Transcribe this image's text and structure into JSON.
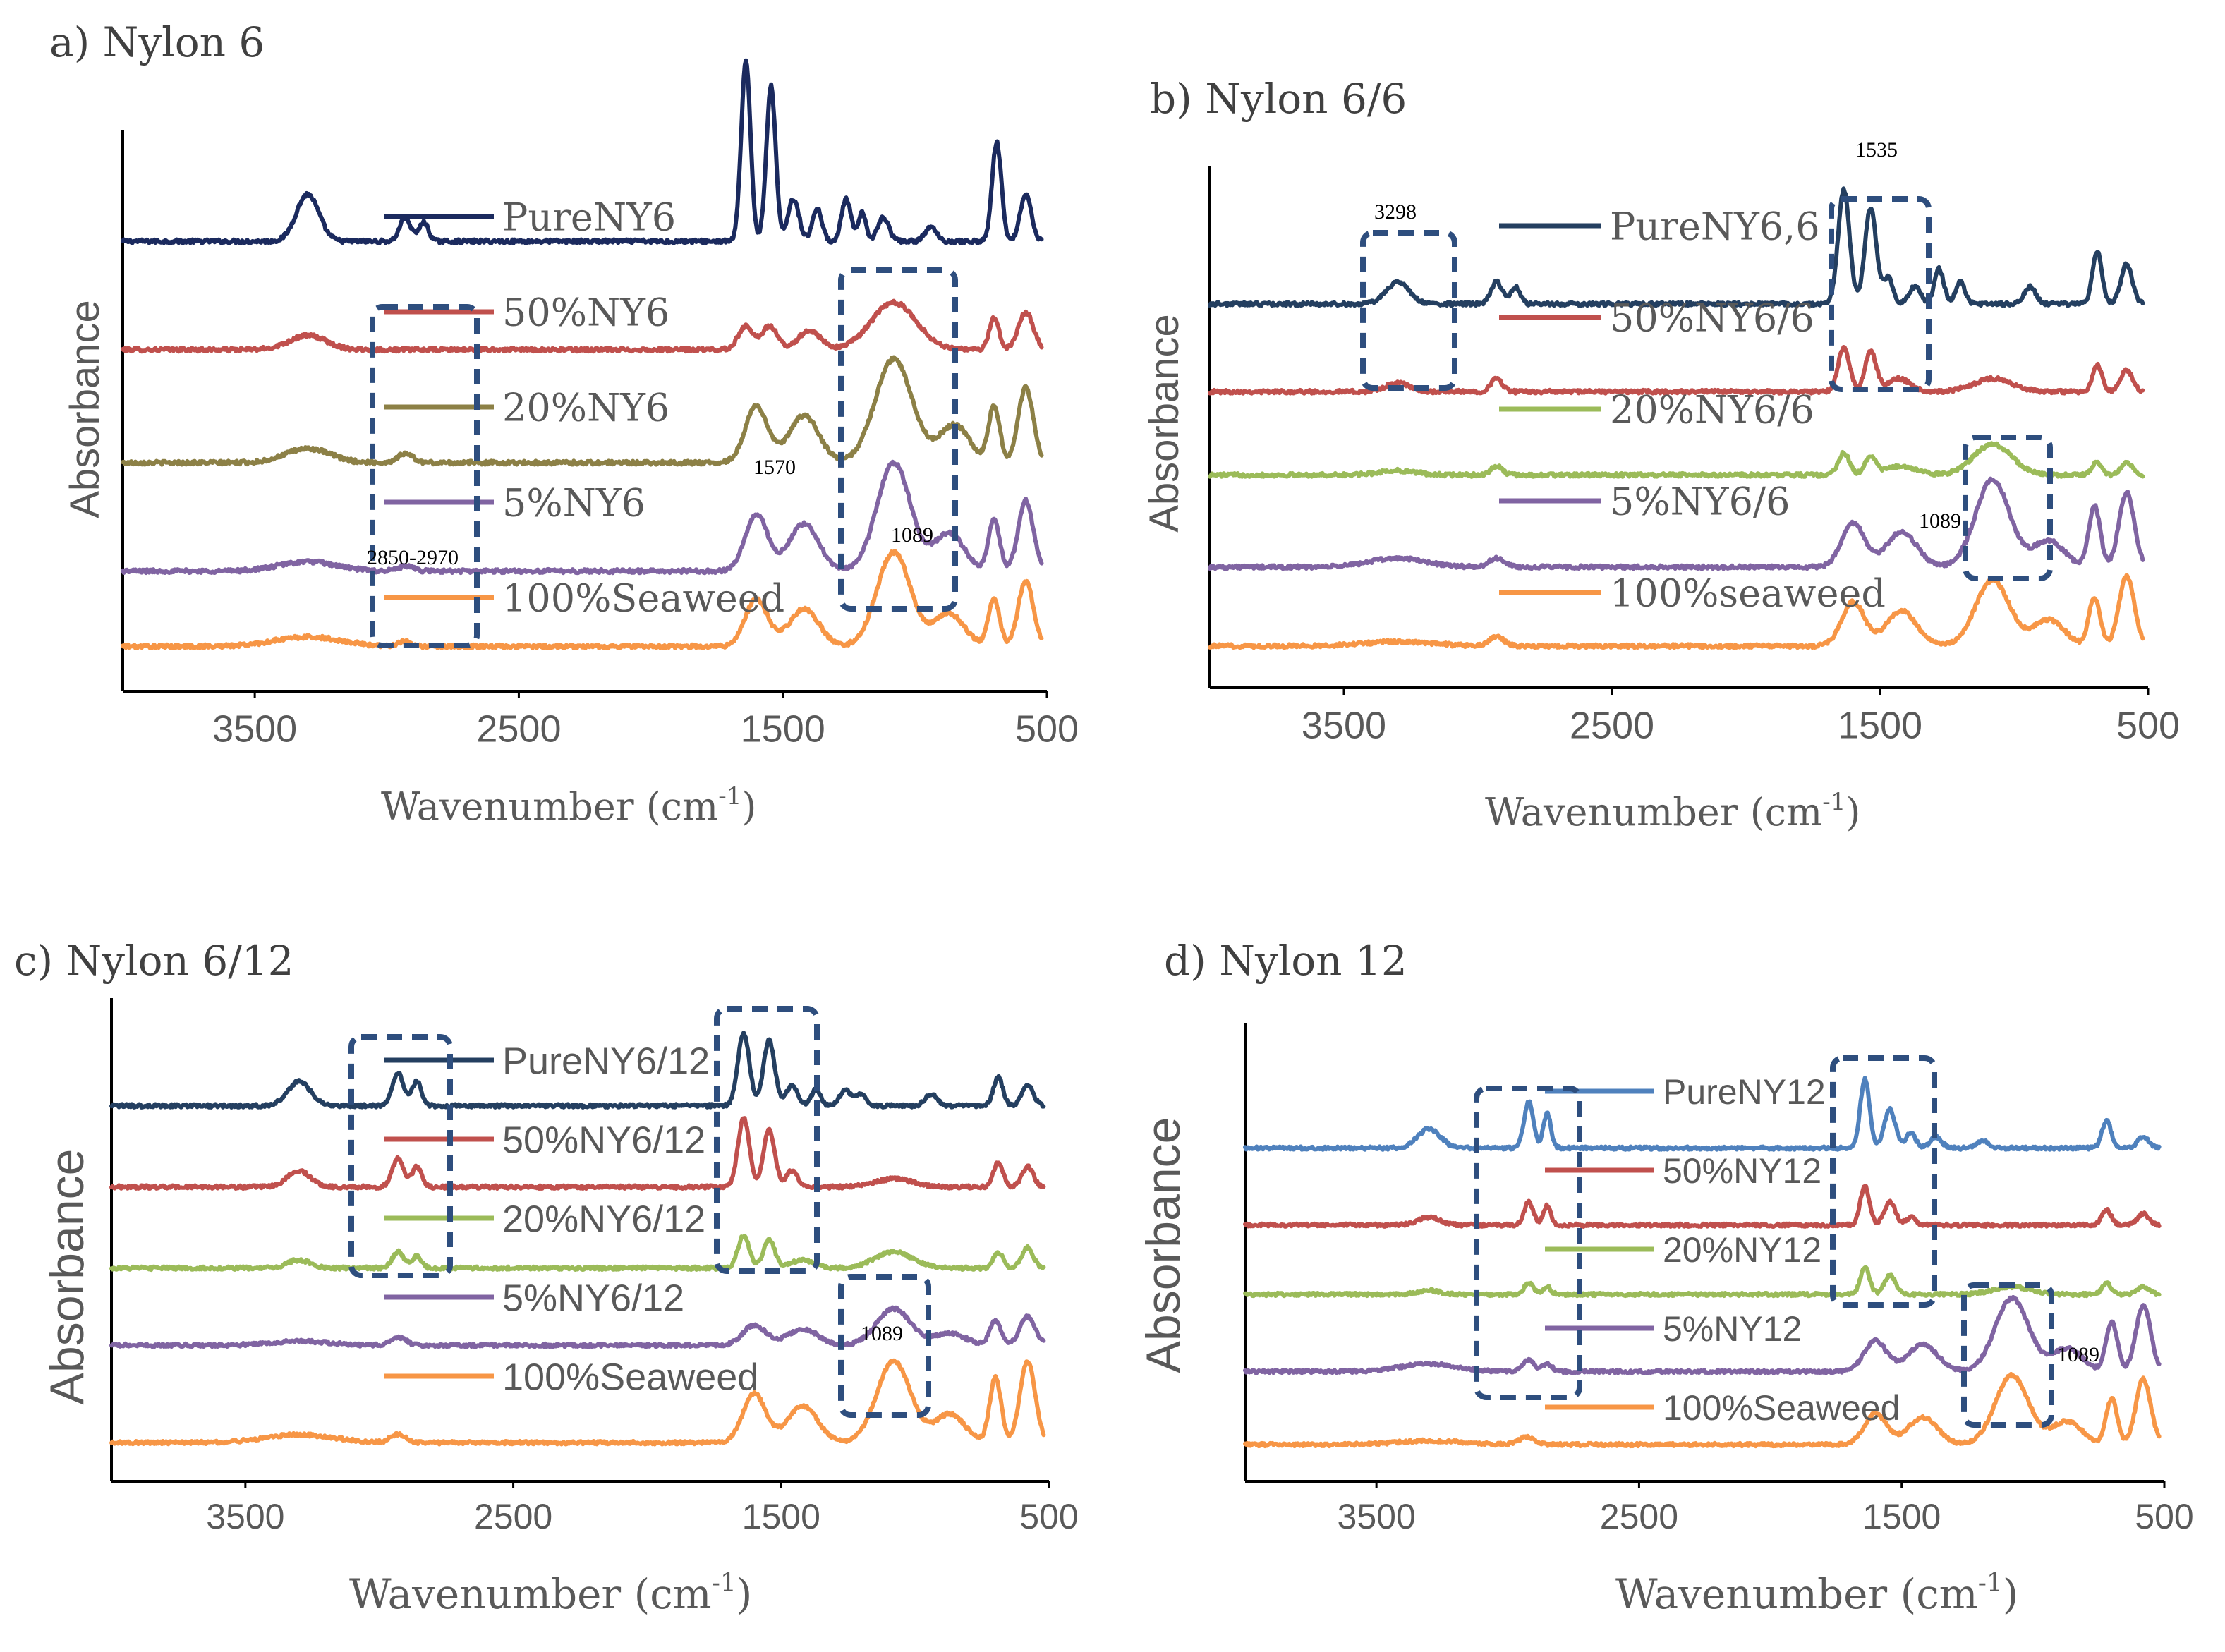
{
  "chart_data": [
    {
      "type": "line",
      "title": "a) Nylon 6",
      "xlabel": "Wavenumber (cm",
      "xlabel_sup": "-1",
      "xlabel_end": ")",
      "ylabel": "Absorbance",
      "x_reversed": true,
      "xlim": [
        4000,
        500
      ],
      "xticks": [
        "3500",
        "2500",
        "1500",
        "500"
      ],
      "series": [
        {
          "name": "PureNY6",
          "color": "#1b2a5e",
          "offset": 0.86,
          "peaks": [
            [
              3300,
              0.1,
              60
            ],
            [
              2930,
              0.05,
              30
            ],
            [
              2860,
              0.04,
              25
            ],
            [
              1640,
              0.38,
              25
            ],
            [
              1545,
              0.33,
              25
            ],
            [
              1460,
              0.09,
              30
            ],
            [
              1370,
              0.07,
              25
            ],
            [
              1260,
              0.09,
              25
            ],
            [
              1200,
              0.06,
              20
            ],
            [
              1120,
              0.05,
              30
            ],
            [
              940,
              0.03,
              30
            ],
            [
              690,
              0.21,
              25
            ],
            [
              580,
              0.1,
              30
            ]
          ]
        },
        {
          "name": "50%NY6",
          "color": "#c0504d",
          "offset": 0.63,
          "peaks": [
            [
              3300,
              0.03,
              100
            ],
            [
              1640,
              0.05,
              40
            ],
            [
              1550,
              0.05,
              40
            ],
            [
              1400,
              0.04,
              60
            ],
            [
              1080,
              0.1,
              120
            ],
            [
              700,
              0.07,
              25
            ],
            [
              580,
              0.08,
              40
            ]
          ]
        },
        {
          "name": "20%NY6",
          "color": "#8c8046",
          "offset": 0.39,
          "peaks": [
            [
              3300,
              0.03,
              120
            ],
            [
              2930,
              0.02,
              40
            ],
            [
              1600,
              0.12,
              60
            ],
            [
              1420,
              0.1,
              80
            ],
            [
              1080,
              0.22,
              100
            ],
            [
              850,
              0.08,
              80
            ],
            [
              700,
              0.12,
              30
            ],
            [
              580,
              0.16,
              40
            ]
          ]
        },
        {
          "name": "5%NY6",
          "color": "#8064a2",
          "offset": 0.16,
          "peaks": [
            [
              3300,
              0.02,
              150
            ],
            [
              2930,
              0.01,
              40
            ],
            [
              1600,
              0.12,
              60
            ],
            [
              1420,
              0.1,
              80
            ],
            [
              1080,
              0.23,
              90
            ],
            [
              870,
              0.08,
              80
            ],
            [
              700,
              0.11,
              30
            ],
            [
              580,
              0.15,
              40
            ]
          ]
        },
        {
          "name": "100%Seaweed",
          "color": "#f79646",
          "offset": 0.0,
          "peaks": [
            [
              3300,
              0.02,
              180
            ],
            [
              2930,
              0.01,
              40
            ],
            [
              1600,
              0.1,
              60
            ],
            [
              1420,
              0.08,
              80
            ],
            [
              1080,
              0.2,
              90
            ],
            [
              870,
              0.07,
              80
            ],
            [
              700,
              0.1,
              30
            ],
            [
              580,
              0.14,
              40
            ]
          ]
        }
      ],
      "annotations": [
        "1570",
        "1089",
        "2850-2970"
      ]
    },
    {
      "type": "line",
      "title": "b) Nylon 6/6",
      "xlabel": "Wavenumber (cm",
      "xlabel_sup": "-1",
      "xlabel_end": ")",
      "ylabel": "Absorbance",
      "x_reversed": true,
      "xlim": [
        4000,
        500
      ],
      "xticks": [
        "3500",
        "2500",
        "1500",
        "500"
      ],
      "series": [
        {
          "name": "PureNY6,6",
          "color": "#243f60",
          "offset": 0.78,
          "peaks": [
            [
              3300,
              0.05,
              60
            ],
            [
              2930,
              0.05,
              30
            ],
            [
              2860,
              0.04,
              25
            ],
            [
              1635,
              0.26,
              30
            ],
            [
              1535,
              0.22,
              30
            ],
            [
              1470,
              0.06,
              25
            ],
            [
              1370,
              0.04,
              30
            ],
            [
              1280,
              0.08,
              25
            ],
            [
              1200,
              0.05,
              25
            ],
            [
              940,
              0.04,
              30
            ],
            [
              690,
              0.12,
              25
            ],
            [
              580,
              0.09,
              30
            ]
          ]
        },
        {
          "name": "50%NY6/6",
          "color": "#c0504d",
          "offset": 0.58,
          "peaks": [
            [
              3300,
              0.02,
              60
            ],
            [
              2930,
              0.03,
              30
            ],
            [
              1635,
              0.1,
              30
            ],
            [
              1535,
              0.09,
              30
            ],
            [
              1430,
              0.03,
              60
            ],
            [
              1080,
              0.03,
              100
            ],
            [
              690,
              0.06,
              25
            ],
            [
              580,
              0.05,
              30
            ]
          ]
        },
        {
          "name": "20%NY6/6",
          "color": "#9bbb59",
          "offset": 0.39,
          "peaks": [
            [
              3300,
              0.01,
              100
            ],
            [
              2930,
              0.02,
              30
            ],
            [
              1635,
              0.05,
              30
            ],
            [
              1535,
              0.04,
              30
            ],
            [
              1420,
              0.02,
              80
            ],
            [
              1080,
              0.07,
              100
            ],
            [
              690,
              0.03,
              25
            ],
            [
              580,
              0.03,
              30
            ]
          ]
        },
        {
          "name": "5%NY6/6",
          "color": "#8064a2",
          "offset": 0.18,
          "peaks": [
            [
              3300,
              0.02,
              150
            ],
            [
              2930,
              0.02,
              40
            ],
            [
              1600,
              0.1,
              60
            ],
            [
              1420,
              0.08,
              80
            ],
            [
              1080,
              0.2,
              90
            ],
            [
              870,
              0.06,
              80
            ],
            [
              700,
              0.14,
              30
            ],
            [
              580,
              0.17,
              40
            ]
          ]
        },
        {
          "name": "100%seaweed",
          "color": "#f79646",
          "offset": 0.0,
          "peaks": [
            [
              3300,
              0.01,
              180
            ],
            [
              2930,
              0.02,
              40
            ],
            [
              1600,
              0.1,
              60
            ],
            [
              1420,
              0.08,
              80
            ],
            [
              1080,
              0.15,
              90
            ],
            [
              870,
              0.06,
              80
            ],
            [
              700,
              0.11,
              30
            ],
            [
              580,
              0.16,
              40
            ]
          ]
        }
      ],
      "annotations": [
        "3298",
        "1535",
        "1089"
      ]
    },
    {
      "type": "line",
      "title": "c) Nylon 6/12",
      "xlabel": "Wavenumber (cm",
      "xlabel_sup": "-1",
      "xlabel_end": ")",
      "ylabel": "Absorbance",
      "x_reversed": true,
      "xlim": [
        4000,
        500
      ],
      "xticks": [
        "3500",
        "2500",
        "1500",
        "500"
      ],
      "series": [
        {
          "name": "PureNY6/12",
          "color": "#243f60",
          "offset": 0.83,
          "peaks": [
            [
              3300,
              0.06,
              60
            ],
            [
              2930,
              0.08,
              30
            ],
            [
              2860,
              0.06,
              25
            ],
            [
              1640,
              0.18,
              30
            ],
            [
              1545,
              0.16,
              30
            ],
            [
              1460,
              0.05,
              30
            ],
            [
              1370,
              0.04,
              25
            ],
            [
              1260,
              0.04,
              30
            ],
            [
              1200,
              0.03,
              25
            ],
            [
              940,
              0.03,
              30
            ],
            [
              690,
              0.07,
              25
            ],
            [
              580,
              0.05,
              30
            ]
          ]
        },
        {
          "name": "50%NY6/12",
          "color": "#c0504d",
          "offset": 0.63,
          "peaks": [
            [
              3300,
              0.04,
              60
            ],
            [
              2930,
              0.07,
              30
            ],
            [
              2860,
              0.05,
              25
            ],
            [
              1640,
              0.17,
              30
            ],
            [
              1545,
              0.14,
              30
            ],
            [
              1460,
              0.04,
              30
            ],
            [
              1080,
              0.02,
              100
            ],
            [
              690,
              0.06,
              25
            ],
            [
              580,
              0.05,
              30
            ]
          ]
        },
        {
          "name": "20%NY6/12",
          "color": "#9bbb59",
          "offset": 0.43,
          "peaks": [
            [
              3300,
              0.02,
              60
            ],
            [
              2930,
              0.04,
              30
            ],
            [
              2860,
              0.03,
              25
            ],
            [
              1640,
              0.08,
              30
            ],
            [
              1545,
              0.07,
              30
            ],
            [
              1420,
              0.02,
              60
            ],
            [
              1080,
              0.04,
              100
            ],
            [
              690,
              0.04,
              25
            ],
            [
              580,
              0.05,
              30
            ]
          ]
        },
        {
          "name": "5%NY6/12",
          "color": "#8064a2",
          "offset": 0.24,
          "peaks": [
            [
              3300,
              0.01,
              150
            ],
            [
              2930,
              0.02,
              40
            ],
            [
              1600,
              0.05,
              60
            ],
            [
              1420,
              0.04,
              80
            ],
            [
              1080,
              0.09,
              90
            ],
            [
              870,
              0.03,
              80
            ],
            [
              700,
              0.06,
              30
            ],
            [
              580,
              0.07,
              40
            ]
          ]
        },
        {
          "name": "100%Seaweed",
          "color": "#f79646",
          "offset": 0.0,
          "peaks": [
            [
              3300,
              0.02,
              180
            ],
            [
              2930,
              0.02,
              40
            ],
            [
              1600,
              0.12,
              60
            ],
            [
              1420,
              0.09,
              80
            ],
            [
              1080,
              0.2,
              90
            ],
            [
              870,
              0.07,
              80
            ],
            [
              700,
              0.16,
              30
            ],
            [
              580,
              0.2,
              40
            ]
          ]
        }
      ],
      "annotations": [
        "1089"
      ]
    },
    {
      "type": "line",
      "title": "d) Nylon 12",
      "xlabel": "Wavenumber (cm",
      "xlabel_sup": "-1",
      "xlabel_end": ")",
      "ylabel": "Absorbance",
      "x_reversed": true,
      "xlim": [
        4000,
        500
      ],
      "xticks": [
        "3500",
        "2500",
        "1500",
        "500"
      ],
      "series": [
        {
          "name": "PureNY12",
          "color": "#4f81bd",
          "offset": 0.77,
          "peaks": [
            [
              3300,
              0.05,
              60
            ],
            [
              2920,
              0.12,
              25
            ],
            [
              2850,
              0.09,
              20
            ],
            [
              1640,
              0.18,
              25
            ],
            [
              1545,
              0.1,
              30
            ],
            [
              1465,
              0.04,
              25
            ],
            [
              1370,
              0.03,
              30
            ],
            [
              1190,
              0.02,
              30
            ],
            [
              720,
              0.07,
              25
            ],
            [
              580,
              0.03,
              30
            ]
          ]
        },
        {
          "name": "50%NY12",
          "color": "#c0504d",
          "offset": 0.57,
          "peaks": [
            [
              3300,
              0.02,
              60
            ],
            [
              2920,
              0.06,
              25
            ],
            [
              2850,
              0.05,
              20
            ],
            [
              1640,
              0.1,
              25
            ],
            [
              1545,
              0.06,
              30
            ],
            [
              1465,
              0.02,
              25
            ],
            [
              720,
              0.04,
              25
            ],
            [
              580,
              0.03,
              30
            ]
          ]
        },
        {
          "name": "20%NY12",
          "color": "#9bbb59",
          "offset": 0.39,
          "peaks": [
            [
              3300,
              0.01,
              60
            ],
            [
              2920,
              0.03,
              25
            ],
            [
              2850,
              0.02,
              20
            ],
            [
              1640,
              0.07,
              25
            ],
            [
              1545,
              0.05,
              30
            ],
            [
              1080,
              0.02,
              100
            ],
            [
              720,
              0.03,
              25
            ],
            [
              580,
              0.02,
              30
            ]
          ]
        },
        {
          "name": "5%NY12",
          "color": "#8064a2",
          "offset": 0.19,
          "peaks": [
            [
              3300,
              0.02,
              150
            ],
            [
              2920,
              0.03,
              30
            ],
            [
              2850,
              0.02,
              25
            ],
            [
              1600,
              0.08,
              60
            ],
            [
              1420,
              0.07,
              80
            ],
            [
              1080,
              0.19,
              90
            ],
            [
              870,
              0.06,
              80
            ],
            [
              700,
              0.13,
              30
            ],
            [
              580,
              0.17,
              40
            ]
          ]
        },
        {
          "name": "100%Seaweed",
          "color": "#f79646",
          "offset": 0.0,
          "peaks": [
            [
              3300,
              0.01,
              180
            ],
            [
              2930,
              0.02,
              40
            ],
            [
              1600,
              0.08,
              60
            ],
            [
              1420,
              0.07,
              80
            ],
            [
              1080,
              0.18,
              90
            ],
            [
              870,
              0.06,
              80
            ],
            [
              700,
              0.12,
              30
            ],
            [
              580,
              0.17,
              40
            ]
          ]
        }
      ],
      "annotations": [
        "1089"
      ]
    }
  ]
}
